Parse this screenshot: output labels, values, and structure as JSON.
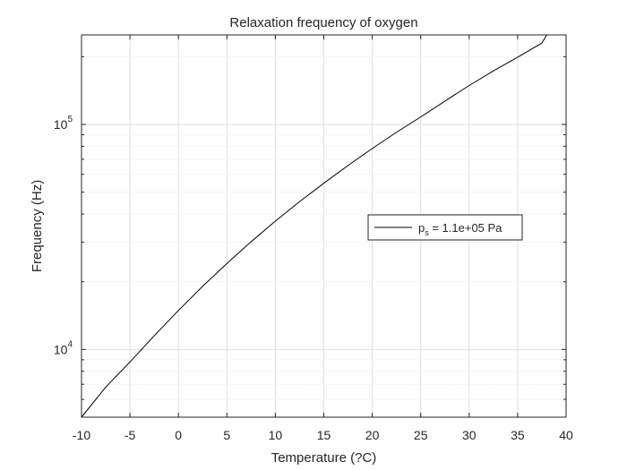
{
  "chart_data": {
    "type": "line",
    "title": "Relaxation frequency of oxygen",
    "xlabel": "Temperature (?C)",
    "ylabel": "Frequency (Hz)",
    "xlim": [
      -10,
      40
    ],
    "ylim": [
      5000,
      250000
    ],
    "yscale": "log",
    "grid": true,
    "x_ticks": [
      -10,
      -5,
      0,
      5,
      10,
      15,
      20,
      25,
      30,
      35,
      40
    ],
    "y_ticks": [
      10000,
      100000
    ],
    "y_tick_labels": [
      {
        "base": "10",
        "exp": "4"
      },
      {
        "base": "10",
        "exp": "5"
      }
    ],
    "legend": {
      "placement": "center-right",
      "entries": [
        {
          "main": "p",
          "sub": "s",
          "rest": " = 1.1e+05 Pa"
        }
      ]
    },
    "series": [
      {
        "name": "p_s = 1.1e+05 Pa",
        "color": "#000000",
        "x": [
          -10,
          -7.5,
          -5,
          -2.5,
          0,
          2.5,
          5,
          7.5,
          10,
          12.5,
          15,
          17.5,
          20,
          22.5,
          25,
          27.5,
          30,
          32.5,
          35,
          37.5,
          38
        ],
        "y": [
          5000,
          6800,
          8800,
          11500,
          14900,
          19100,
          24100,
          30100,
          37200,
          45400,
          54800,
          65700,
          78200,
          92300,
          108000,
          127000,
          149000,
          173000,
          199000,
          230000,
          250000
        ]
      }
    ]
  }
}
